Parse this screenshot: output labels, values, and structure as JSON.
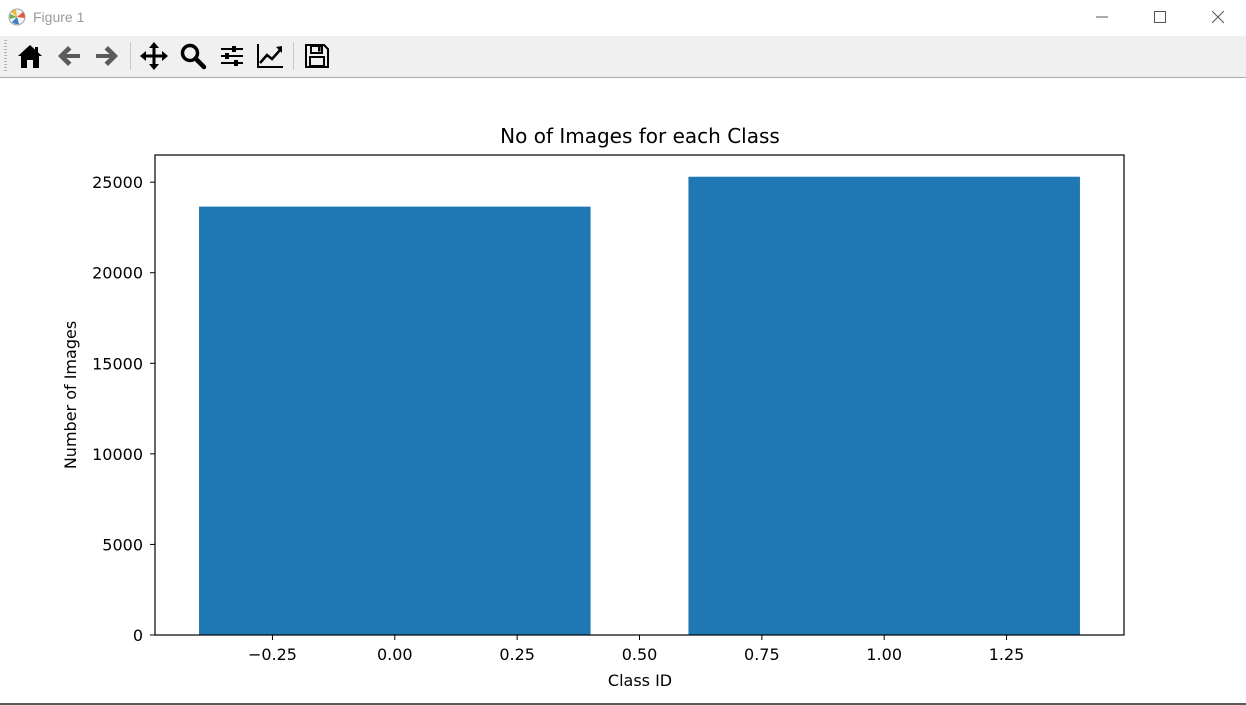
{
  "window": {
    "title": "Figure 1"
  },
  "toolbar": {
    "buttons": [
      {
        "name": "home-icon",
        "label": "Home"
      },
      {
        "name": "back-arrow-icon",
        "label": "Back"
      },
      {
        "name": "forward-arrow-icon",
        "label": "Forward"
      },
      {
        "name": "pan-icon",
        "label": "Pan"
      },
      {
        "name": "zoom-icon",
        "label": "Zoom"
      },
      {
        "name": "configure-subplots-icon",
        "label": "Subplots"
      },
      {
        "name": "edit-axis-icon",
        "label": "Customize"
      },
      {
        "name": "save-icon",
        "label": "Save"
      }
    ]
  },
  "chart_data": {
    "type": "bar",
    "title": "No of Images for each Class",
    "xlabel": "Class ID",
    "ylabel": "Number of Images",
    "x": [
      0,
      1
    ],
    "values": [
      23650,
      25300
    ],
    "bar_width": 0.8,
    "bar_color": "#1f77b4",
    "xlim": [
      -0.49,
      1.49
    ],
    "ylim": [
      0,
      26500
    ],
    "xticks": [
      -0.25,
      0.0,
      0.25,
      0.5,
      0.75,
      1.0,
      1.25
    ],
    "xtick_labels": [
      "−0.25",
      "0.00",
      "0.25",
      "0.50",
      "0.75",
      "1.00",
      "1.25"
    ],
    "yticks": [
      0,
      5000,
      10000,
      15000,
      20000,
      25000
    ],
    "ytick_labels": [
      "0",
      "5000",
      "10000",
      "15000",
      "20000",
      "25000"
    ],
    "grid": false,
    "legend": "none"
  }
}
